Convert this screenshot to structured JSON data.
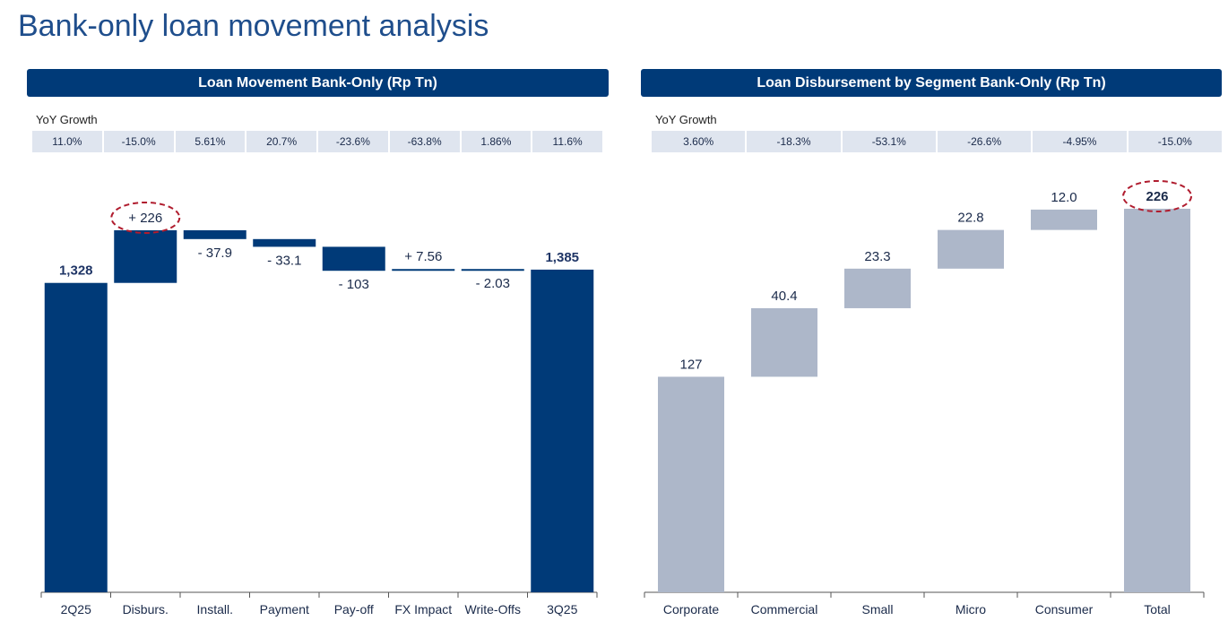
{
  "title": "Bank-only loan movement analysis",
  "chart_data": [
    {
      "type": "waterfall",
      "title": "Loan Movement Bank-Only (Rp Tn)",
      "table_label": "YoY Growth",
      "categories": [
        "2Q25",
        "Disburs.",
        "Install.",
        "Payment",
        "Pay-off",
        "FX Impact",
        "Write-Offs",
        "3Q25"
      ],
      "values": [
        1328,
        226,
        -37.9,
        -33.1,
        -103,
        7.56,
        -2.03,
        1385
      ],
      "labels": [
        "1,328",
        "+ 226",
        "- 37.9",
        "- 33.1",
        "- 103",
        "+ 7.56",
        "- 2.03",
        "1,385"
      ],
      "yoy_growth": [
        "11.0%",
        "-15.0%",
        "5.61%",
        "20.7%",
        "-23.6%",
        "-63.8%",
        "1.86%",
        "11.6%"
      ],
      "totals": [
        0,
        7
      ],
      "highlight": 1,
      "ylim": [
        0,
        1600
      ],
      "color": "#003a78"
    },
    {
      "type": "waterfall",
      "title": "Loan Disbursement by Segment Bank-Only (Rp Tn)",
      "table_label": "YoY Growth",
      "categories": [
        "Corporate",
        "Commercial",
        "Small",
        "Micro",
        "Consumer",
        "Total"
      ],
      "values": [
        127,
        40.4,
        23.3,
        22.8,
        12.0,
        226
      ],
      "labels": [
        "127",
        "40.4",
        "23.3",
        "22.8",
        "12.0",
        "226"
      ],
      "yoy_growth": [
        "3.60%",
        "-18.3%",
        "-53.1%",
        "-26.6%",
        "-4.95%",
        "-15.0%"
      ],
      "totals": [
        5
      ],
      "highlight": 5,
      "ylim": [
        0,
        250
      ],
      "color": "#adb7c9"
    }
  ]
}
